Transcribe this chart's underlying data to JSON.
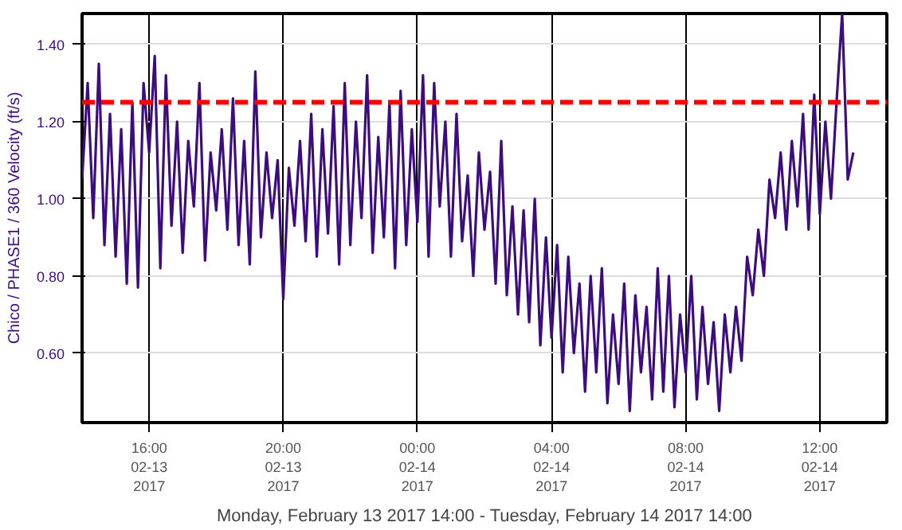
{
  "chart_data": {
    "type": "line",
    "xlabel": "Monday, February 13 2017 14:00 - Tuesday, February 14 2017 14:00",
    "ylabel": "Chico / PHASE1 / 360 Velocity (ft/s)",
    "x": [
      "2017-02-13T14:00",
      "2017-02-13T14:10",
      "2017-02-13T14:20",
      "2017-02-13T14:30",
      "2017-02-13T14:40",
      "2017-02-13T14:50",
      "2017-02-13T15:00",
      "2017-02-13T15:10",
      "2017-02-13T15:20",
      "2017-02-13T15:30",
      "2017-02-13T15:40",
      "2017-02-13T15:50",
      "2017-02-13T16:00",
      "2017-02-13T16:10",
      "2017-02-13T16:20",
      "2017-02-13T16:30",
      "2017-02-13T16:40",
      "2017-02-13T16:50",
      "2017-02-13T17:00",
      "2017-02-13T17:10",
      "2017-02-13T17:20",
      "2017-02-13T17:30",
      "2017-02-13T17:40",
      "2017-02-13T17:50",
      "2017-02-13T18:00",
      "2017-02-13T18:10",
      "2017-02-13T18:20",
      "2017-02-13T18:30",
      "2017-02-13T18:40",
      "2017-02-13T18:50",
      "2017-02-13T19:00",
      "2017-02-13T19:10",
      "2017-02-13T19:20",
      "2017-02-13T19:30",
      "2017-02-13T19:40",
      "2017-02-13T19:50",
      "2017-02-13T20:00",
      "2017-02-13T20:10",
      "2017-02-13T20:20",
      "2017-02-13T20:30",
      "2017-02-13T20:40",
      "2017-02-13T20:50",
      "2017-02-13T21:00",
      "2017-02-13T21:10",
      "2017-02-13T21:20",
      "2017-02-13T21:30",
      "2017-02-13T21:40",
      "2017-02-13T21:50",
      "2017-02-13T22:00",
      "2017-02-13T22:10",
      "2017-02-13T22:20",
      "2017-02-13T22:30",
      "2017-02-13T22:40",
      "2017-02-13T22:50",
      "2017-02-13T23:00",
      "2017-02-13T23:10",
      "2017-02-13T23:20",
      "2017-02-13T23:30",
      "2017-02-13T23:40",
      "2017-02-13T23:50",
      "2017-02-14T00:00",
      "2017-02-14T00:10",
      "2017-02-14T00:20",
      "2017-02-14T00:30",
      "2017-02-14T00:40",
      "2017-02-14T00:50",
      "2017-02-14T01:00",
      "2017-02-14T01:10",
      "2017-02-14T01:20",
      "2017-02-14T01:30",
      "2017-02-14T01:40",
      "2017-02-14T01:50",
      "2017-02-14T02:00",
      "2017-02-14T02:10",
      "2017-02-14T02:20",
      "2017-02-14T02:30",
      "2017-02-14T02:40",
      "2017-02-14T02:50",
      "2017-02-14T03:00",
      "2017-02-14T03:10",
      "2017-02-14T03:20",
      "2017-02-14T03:30",
      "2017-02-14T03:40",
      "2017-02-14T03:50",
      "2017-02-14T04:00",
      "2017-02-14T04:10",
      "2017-02-14T04:20",
      "2017-02-14T04:30",
      "2017-02-14T04:40",
      "2017-02-14T04:50",
      "2017-02-14T05:00",
      "2017-02-14T05:10",
      "2017-02-14T05:20",
      "2017-02-14T05:30",
      "2017-02-14T05:40",
      "2017-02-14T05:50",
      "2017-02-14T06:00",
      "2017-02-14T06:10",
      "2017-02-14T06:20",
      "2017-02-14T06:30",
      "2017-02-14T06:40",
      "2017-02-14T06:50",
      "2017-02-14T07:00",
      "2017-02-14T07:10",
      "2017-02-14T07:20",
      "2017-02-14T07:30",
      "2017-02-14T07:40",
      "2017-02-14T07:50",
      "2017-02-14T08:00",
      "2017-02-14T08:10",
      "2017-02-14T08:20",
      "2017-02-14T08:30",
      "2017-02-14T08:40",
      "2017-02-14T08:50",
      "2017-02-14T09:00",
      "2017-02-14T09:10",
      "2017-02-14T09:20",
      "2017-02-14T09:30",
      "2017-02-14T09:40",
      "2017-02-14T09:50",
      "2017-02-14T10:00",
      "2017-02-14T10:10",
      "2017-02-14T10:20",
      "2017-02-14T10:30",
      "2017-02-14T10:40",
      "2017-02-14T10:50",
      "2017-02-14T11:00",
      "2017-02-14T11:10",
      "2017-02-14T11:20",
      "2017-02-14T11:30",
      "2017-02-14T11:40",
      "2017-02-14T11:50",
      "2017-02-14T12:00",
      "2017-02-14T12:10",
      "2017-02-14T12:20",
      "2017-02-14T12:30",
      "2017-02-14T12:40",
      "2017-02-14T12:50",
      "2017-02-14T13:00"
    ],
    "series": [
      {
        "color": "#3d0c80",
        "values": [
          1.05,
          1.3,
          0.95,
          1.35,
          0.88,
          1.22,
          0.85,
          1.18,
          0.78,
          1.25,
          0.77,
          1.3,
          1.12,
          1.37,
          0.82,
          1.32,
          0.93,
          1.2,
          0.86,
          1.15,
          0.98,
          1.3,
          0.84,
          1.12,
          0.97,
          1.18,
          0.92,
          1.26,
          0.88,
          1.15,
          0.83,
          1.33,
          0.9,
          1.12,
          0.95,
          1.1,
          0.74,
          1.08,
          0.93,
          1.15,
          0.89,
          1.22,
          0.85,
          1.18,
          0.91,
          1.24,
          0.83,
          1.3,
          0.88,
          1.2,
          0.95,
          1.32,
          0.86,
          1.16,
          0.9,
          1.25,
          0.82,
          1.28,
          0.88,
          1.18,
          0.94,
          1.32,
          0.85,
          1.3,
          0.98,
          1.2,
          0.85,
          1.22,
          0.89,
          1.06,
          0.8,
          1.12,
          0.92,
          1.07,
          0.78,
          1.15,
          0.75,
          0.98,
          0.7,
          0.97,
          0.68,
          1.0,
          0.62,
          0.9,
          0.64,
          0.88,
          0.55,
          0.85,
          0.6,
          0.78,
          0.5,
          0.8,
          0.55,
          0.82,
          0.47,
          0.7,
          0.52,
          0.78,
          0.45,
          0.75,
          0.55,
          0.72,
          0.48,
          0.82,
          0.5,
          0.8,
          0.46,
          0.7,
          0.55,
          0.8,
          0.48,
          0.72,
          0.52,
          0.68,
          0.45,
          0.7,
          0.55,
          0.72,
          0.58,
          0.85,
          0.75,
          0.92,
          0.8,
          1.05,
          0.95,
          1.12,
          0.92,
          1.15,
          0.98,
          1.22,
          0.92,
          1.27,
          0.96,
          1.2,
          1.0,
          1.25,
          1.48,
          1.05,
          1.12
        ]
      }
    ],
    "xlim": [
      "2017-02-13T14:00",
      "2017-02-14T14:00"
    ],
    "xticks": [
      {
        "value": "2017-02-13T16:00",
        "label": "16:00\n02-13\n2017"
      },
      {
        "value": "2017-02-13T20:00",
        "label": "20:00\n02-13\n2017"
      },
      {
        "value": "2017-02-14T00:00",
        "label": "00:00\n02-14\n2017"
      },
      {
        "value": "2017-02-14T04:00",
        "label": "04:00\n02-14\n2017"
      },
      {
        "value": "2017-02-14T08:00",
        "label": "08:00\n02-14\n2017"
      },
      {
        "value": "2017-02-14T12:00",
        "label": "12:00\n02-14\n2017"
      }
    ],
    "ylim": [
      0.42,
      1.48
    ],
    "yticks": [
      {
        "value": 0.6,
        "label": "0.60"
      },
      {
        "value": 0.8,
        "label": "0.80"
      },
      {
        "value": 1.0,
        "label": "1.00"
      },
      {
        "value": 1.2,
        "label": "1.20"
      },
      {
        "value": 1.4,
        "label": "1.40"
      }
    ],
    "ref_lines": [
      {
        "axis": "y",
        "value": 1.25,
        "color": "#ff0000",
        "line_style": "dashed"
      }
    ],
    "grid": true,
    "line_style": "solid"
  }
}
